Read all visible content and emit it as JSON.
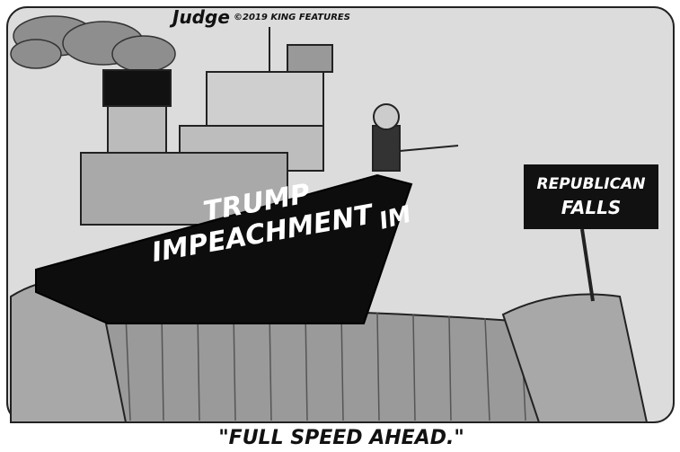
{
  "signature": {
    "artist": "Judge",
    "credit": "©2019 KING FEATURES"
  },
  "ship": {
    "lines": [
      "TRUMP",
      "IMPEACHMENT"
    ],
    "side": "IM"
  },
  "sign": {
    "lines": [
      "REPUBLICAN",
      "FALLS"
    ]
  },
  "caption": "\"FULL SPEED AHEAD.\""
}
